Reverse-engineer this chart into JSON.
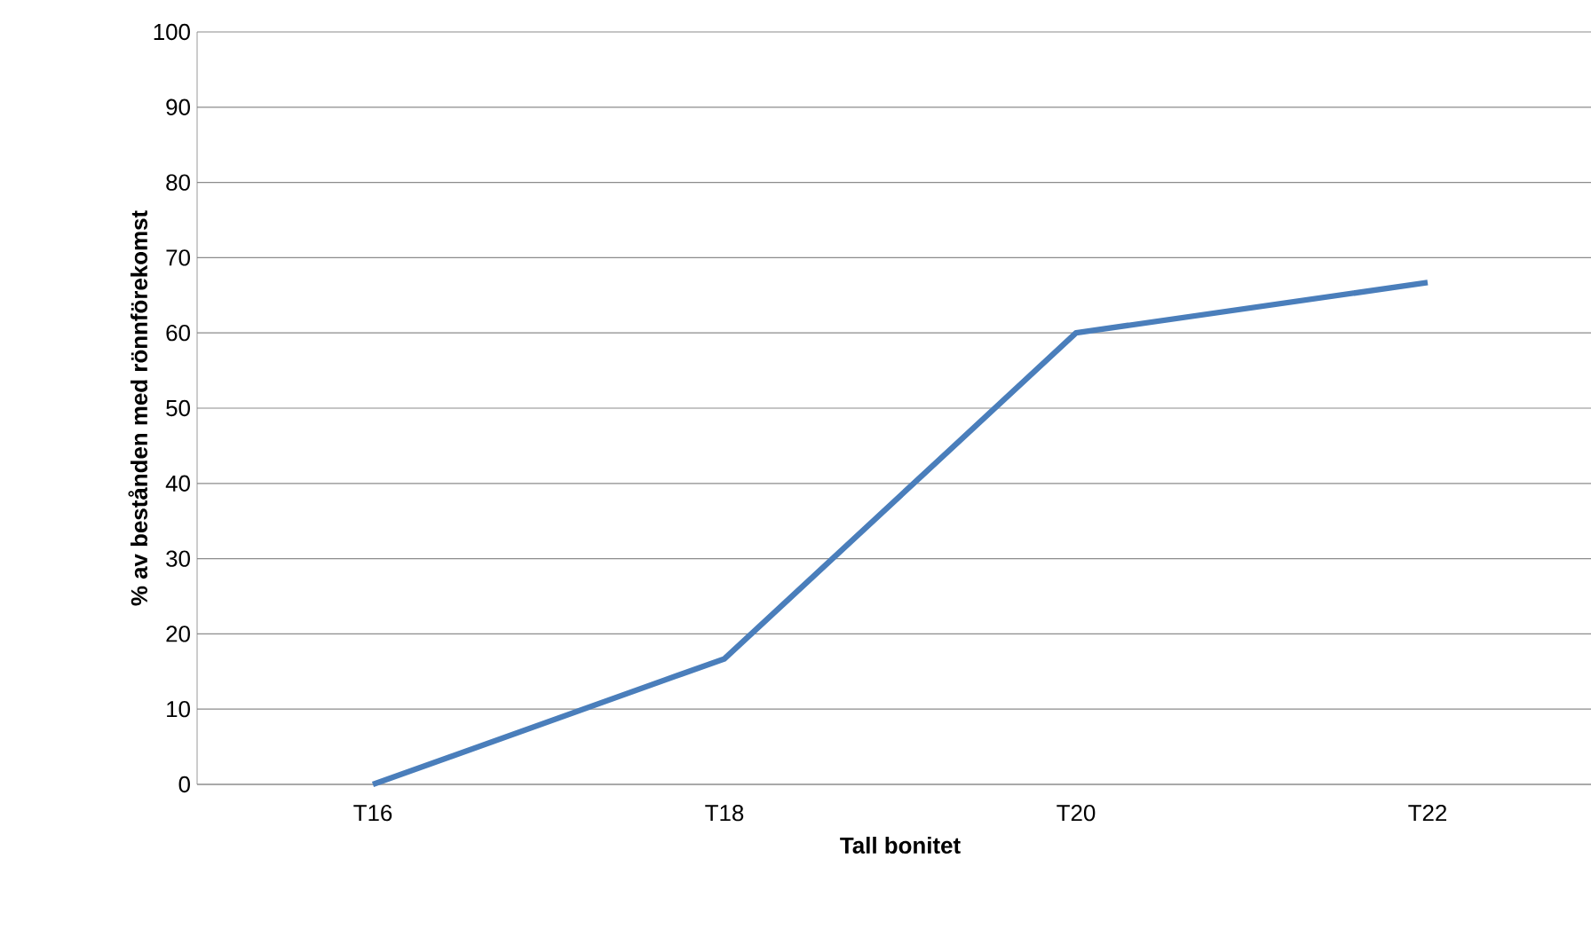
{
  "chart_data": {
    "type": "line",
    "xlabel": "Tall bonitet",
    "ylabel": "% av bestånden med rönnförekomst",
    "categories": [
      "T16",
      "T18",
      "T20",
      "T22"
    ],
    "series": [
      {
        "color": "#4a7ebb",
        "values": [
          0,
          16.7,
          60,
          66.7
        ]
      }
    ],
    "ylim": [
      0,
      100
    ],
    "yticks": [
      0,
      10,
      20,
      30,
      40,
      50,
      60,
      70,
      80,
      90,
      100
    ],
    "grid": "y",
    "marker": "none",
    "line_style": "solid"
  }
}
